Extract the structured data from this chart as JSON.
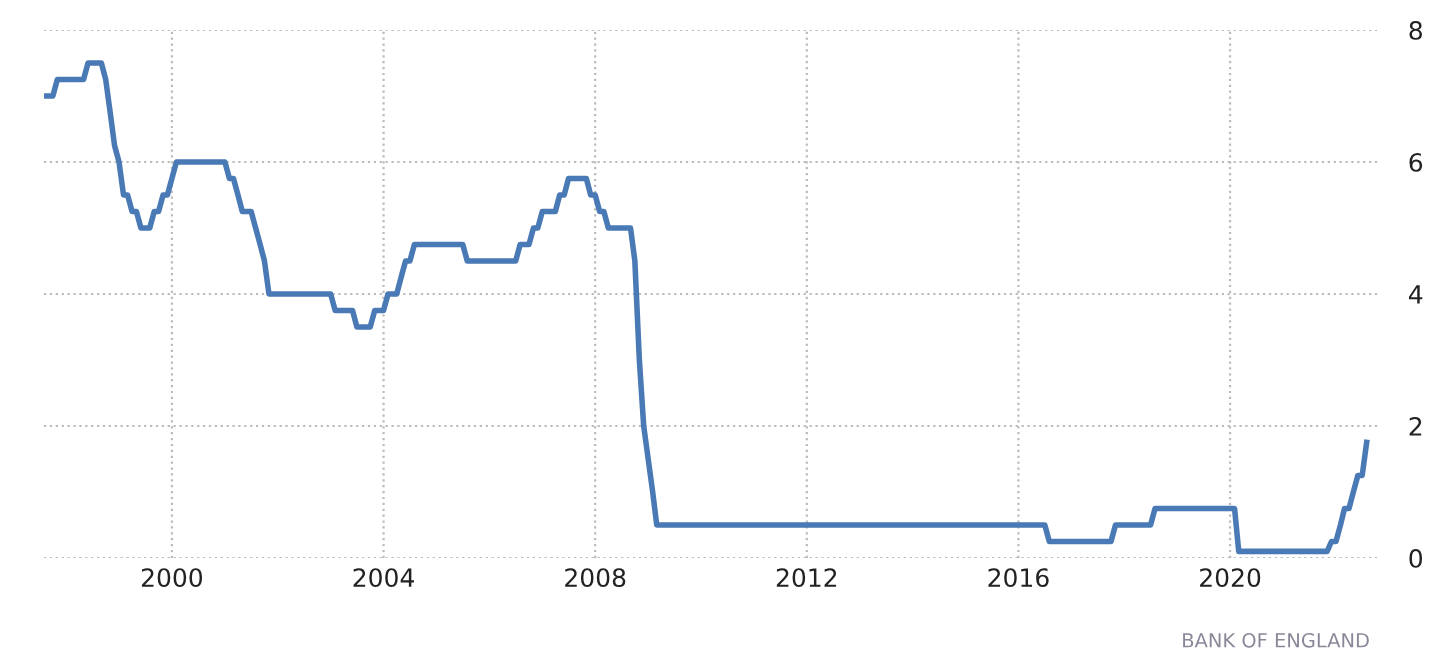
{
  "chart_data": {
    "type": "line",
    "x": [
      "1997-08",
      "1997-10",
      "1997-11",
      "1998-05",
      "1998-06",
      "1998-09",
      "1998-10",
      "1998-11",
      "1998-12",
      "1999-01",
      "1999-02",
      "1999-03",
      "1999-04",
      "1999-05",
      "1999-06",
      "1999-08",
      "1999-09",
      "1999-10",
      "1999-11",
      "1999-12",
      "2000-01",
      "2000-02",
      "2001-01",
      "2001-02",
      "2001-03",
      "2001-04",
      "2001-05",
      "2001-07",
      "2001-08",
      "2001-09",
      "2001-10",
      "2001-11",
      "2003-01",
      "2003-02",
      "2003-06",
      "2003-07",
      "2003-10",
      "2003-11",
      "2004-01",
      "2004-02",
      "2004-04",
      "2004-05",
      "2004-06",
      "2004-07",
      "2004-08",
      "2005-07",
      "2005-08",
      "2006-07",
      "2006-08",
      "2006-10",
      "2006-11",
      "2006-12",
      "2007-01",
      "2007-04",
      "2007-05",
      "2007-06",
      "2007-07",
      "2007-11",
      "2007-12",
      "2008-01",
      "2008-02",
      "2008-03",
      "2008-04",
      "2008-09",
      "2008-10",
      "2008-11",
      "2008-12",
      "2009-01",
      "2009-02",
      "2009-03",
      "2016-07",
      "2016-08",
      "2017-10",
      "2017-11",
      "2018-07",
      "2018-08",
      "2020-02",
      "2020-03",
      "2021-11",
      "2021-12",
      "2022-01",
      "2022-02",
      "2022-03",
      "2022-04",
      "2022-05",
      "2022-06",
      "2022-07",
      "2022-08"
    ],
    "series": [
      {
        "color": "#4a7ab5",
        "values": [
          7.0,
          7.0,
          7.25,
          7.25,
          7.5,
          7.5,
          7.25,
          6.75,
          6.25,
          6.0,
          5.5,
          5.5,
          5.25,
          5.25,
          5.0,
          5.0,
          5.25,
          5.25,
          5.5,
          5.5,
          5.75,
          6.0,
          6.0,
          5.75,
          5.75,
          5.5,
          5.25,
          5.25,
          5.0,
          4.75,
          4.5,
          4.0,
          4.0,
          3.75,
          3.75,
          3.5,
          3.5,
          3.75,
          3.75,
          4.0,
          4.0,
          4.25,
          4.5,
          4.5,
          4.75,
          4.75,
          4.5,
          4.5,
          4.75,
          4.75,
          5.0,
          5.0,
          5.25,
          5.25,
          5.5,
          5.5,
          5.75,
          5.75,
          5.5,
          5.5,
          5.25,
          5.25,
          5.0,
          5.0,
          4.5,
          3.0,
          2.0,
          1.5,
          1.0,
          0.5,
          0.5,
          0.25,
          0.25,
          0.5,
          0.5,
          0.75,
          0.75,
          0.1,
          0.1,
          0.25,
          0.25,
          0.5,
          0.75,
          0.75,
          1.0,
          1.25,
          1.25,
          1.75
        ]
      }
    ],
    "xlim": [
      "1997-08",
      "2022-11"
    ],
    "xticks": [
      {
        "value": "2000-01",
        "label": "2000"
      },
      {
        "value": "2004-01",
        "label": "2004"
      },
      {
        "value": "2008-01",
        "label": "2008"
      },
      {
        "value": "2012-01",
        "label": "2012"
      },
      {
        "value": "2016-01",
        "label": "2016"
      },
      {
        "value": "2020-01",
        "label": "2020"
      }
    ],
    "ylim": [
      0,
      8
    ],
    "yticks": [
      0,
      2,
      4,
      6,
      8
    ],
    "grid": true,
    "line_style": "solid",
    "marker": "none",
    "annotations": [
      "BANK OF ENGLAND"
    ]
  }
}
